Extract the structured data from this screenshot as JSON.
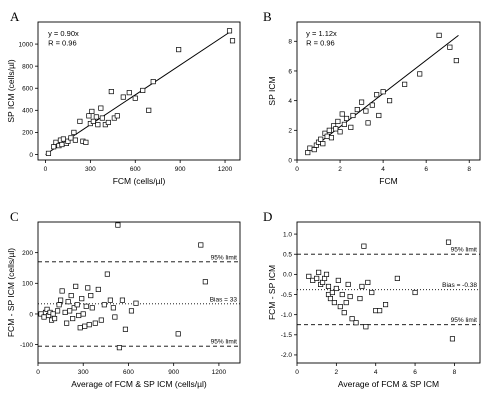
{
  "chart_data": [
    {
      "panel_label": "A",
      "type": "scatter",
      "xlabel": "FCM (cells/µl)",
      "ylabel": "SP ICM (cells/µl)",
      "xlim": [
        -50,
        1300
      ],
      "ylim": [
        -50,
        1200
      ],
      "xticks": [
        0,
        300,
        600,
        900,
        1200
      ],
      "yticks": [
        0,
        200,
        400,
        600,
        800,
        1000
      ],
      "annotations": [
        "y = 0.90x",
        "R = 0.96"
      ],
      "fit_line": {
        "slope": 0.9,
        "x_range": [
          0,
          1230
        ]
      },
      "points": [
        [
          20,
          10
        ],
        [
          55,
          70
        ],
        [
          70,
          110
        ],
        [
          90,
          80
        ],
        [
          100,
          130
        ],
        [
          110,
          90
        ],
        [
          120,
          140
        ],
        [
          140,
          100
        ],
        [
          150,
          120
        ],
        [
          170,
          150
        ],
        [
          190,
          200
        ],
        [
          200,
          130
        ],
        [
          230,
          300
        ],
        [
          250,
          120
        ],
        [
          270,
          110
        ],
        [
          290,
          350
        ],
        [
          300,
          280
        ],
        [
          310,
          390
        ],
        [
          320,
          300
        ],
        [
          340,
          340
        ],
        [
          350,
          270
        ],
        [
          370,
          420
        ],
        [
          380,
          330
        ],
        [
          400,
          270
        ],
        [
          420,
          290
        ],
        [
          440,
          570
        ],
        [
          460,
          330
        ],
        [
          480,
          350
        ],
        [
          520,
          520
        ],
        [
          560,
          560
        ],
        [
          600,
          510
        ],
        [
          650,
          580
        ],
        [
          690,
          400
        ],
        [
          720,
          660
        ],
        [
          890,
          950
        ],
        [
          1230,
          1120
        ],
        [
          1250,
          1030
        ]
      ]
    },
    {
      "panel_label": "B",
      "type": "scatter",
      "xlabel": "FCM",
      "ylabel": "SP ICM",
      "xlim": [
        0,
        8.5
      ],
      "ylim": [
        0,
        9.3
      ],
      "xticks": [
        0,
        2,
        4,
        6,
        8
      ],
      "yticks": [
        0,
        2,
        4,
        6,
        8
      ],
      "annotations": [
        "y = 1.12x",
        "R = 0.96"
      ],
      "fit_line": {
        "slope": 1.12,
        "x_range": [
          0.5,
          7.5
        ]
      },
      "points": [
        [
          0.5,
          0.5
        ],
        [
          0.6,
          0.8
        ],
        [
          0.8,
          0.7
        ],
        [
          0.9,
          1.0
        ],
        [
          1.0,
          1.2
        ],
        [
          1.1,
          1.4
        ],
        [
          1.2,
          1.1
        ],
        [
          1.3,
          1.8
        ],
        [
          1.4,
          1.6
        ],
        [
          1.5,
          2.0
        ],
        [
          1.6,
          1.5
        ],
        [
          1.7,
          2.3
        ],
        [
          1.8,
          2.1
        ],
        [
          1.9,
          2.6
        ],
        [
          2.0,
          1.9
        ],
        [
          2.1,
          3.1
        ],
        [
          2.2,
          2.4
        ],
        [
          2.3,
          2.8
        ],
        [
          2.5,
          2.2
        ],
        [
          2.6,
          3.0
        ],
        [
          2.8,
          3.4
        ],
        [
          3.0,
          3.9
        ],
        [
          3.2,
          3.3
        ],
        [
          3.3,
          2.5
        ],
        [
          3.5,
          3.7
        ],
        [
          3.7,
          4.4
        ],
        [
          3.8,
          3.0
        ],
        [
          4.0,
          4.6
        ],
        [
          4.3,
          4.0
        ],
        [
          5.0,
          5.1
        ],
        [
          5.7,
          5.8
        ],
        [
          6.6,
          8.4
        ],
        [
          7.1,
          7.6
        ],
        [
          7.4,
          6.7
        ]
      ]
    },
    {
      "panel_label": "C",
      "type": "scatter",
      "xlabel": "Average of FCM & SP ICM (cells/µl)",
      "ylabel": "FCM - SP ICM (cells/µl)",
      "xlim": [
        0,
        1340
      ],
      "ylim": [
        -160,
        300
      ],
      "xticks": [
        0,
        300,
        600,
        900,
        1200
      ],
      "yticks": [
        -100,
        0,
        100,
        200
      ],
      "reference_lines": [
        {
          "y": 170,
          "style": "dashed",
          "label": "95% limit"
        },
        {
          "y": 33,
          "style": "dotted",
          "label": "Bias = 33"
        },
        {
          "y": -105,
          "style": "dashed",
          "label": "95% limit"
        }
      ],
      "points": [
        [
          20,
          0
        ],
        [
          40,
          -10
        ],
        [
          50,
          5
        ],
        [
          60,
          15
        ],
        [
          70,
          -5
        ],
        [
          80,
          5
        ],
        [
          90,
          -20
        ],
        [
          100,
          0
        ],
        [
          110,
          -15
        ],
        [
          130,
          10
        ],
        [
          140,
          30
        ],
        [
          150,
          45
        ],
        [
          160,
          75
        ],
        [
          180,
          5
        ],
        [
          190,
          -30
        ],
        [
          200,
          40
        ],
        [
          210,
          10
        ],
        [
          220,
          60
        ],
        [
          230,
          -15
        ],
        [
          240,
          20
        ],
        [
          250,
          90
        ],
        [
          260,
          30
        ],
        [
          270,
          -5
        ],
        [
          280,
          -45
        ],
        [
          290,
          50
        ],
        [
          300,
          0
        ],
        [
          310,
          -40
        ],
        [
          320,
          25
        ],
        [
          330,
          85
        ],
        [
          340,
          -35
        ],
        [
          350,
          60
        ],
        [
          360,
          20
        ],
        [
          380,
          -30
        ],
        [
          400,
          80
        ],
        [
          420,
          -20
        ],
        [
          440,
          30
        ],
        [
          460,
          130
        ],
        [
          480,
          45
        ],
        [
          500,
          20
        ],
        [
          510,
          -10
        ],
        [
          530,
          290
        ],
        [
          540,
          -110
        ],
        [
          560,
          45
        ],
        [
          580,
          -50
        ],
        [
          620,
          10
        ],
        [
          650,
          35
        ],
        [
          930,
          -65
        ],
        [
          1080,
          225
        ],
        [
          1110,
          105
        ]
      ]
    },
    {
      "panel_label": "D",
      "type": "scatter",
      "xlabel": "Average of FCM & SP ICM",
      "ylabel": "FCM - SP ICM",
      "xlim": [
        0,
        9.3
      ],
      "ylim": [
        -2.2,
        1.3
      ],
      "xticks": [
        0,
        2,
        4,
        6,
        8
      ],
      "yticks": [
        -2.0,
        -1.5,
        -1.0,
        -0.5,
        0.0,
        0.5,
        1.0
      ],
      "reference_lines": [
        {
          "y": 0.5,
          "style": "dashed",
          "label": "95% limit"
        },
        {
          "y": -0.38,
          "style": "dotted",
          "label": "Bias = -0.38"
        },
        {
          "y": -1.25,
          "style": "dashed",
          "label": "95% limit"
        }
      ],
      "points": [
        [
          0.6,
          -0.05
        ],
        [
          0.8,
          -0.15
        ],
        [
          1.0,
          -0.1
        ],
        [
          1.1,
          0.05
        ],
        [
          1.2,
          -0.25
        ],
        [
          1.3,
          -0.2
        ],
        [
          1.4,
          -0.1
        ],
        [
          1.5,
          0.0
        ],
        [
          1.6,
          -0.3
        ],
        [
          1.6,
          -0.5
        ],
        [
          1.7,
          -0.6
        ],
        [
          1.8,
          -0.45
        ],
        [
          1.9,
          -0.7
        ],
        [
          2.0,
          -0.35
        ],
        [
          2.1,
          -0.15
        ],
        [
          2.2,
          -0.8
        ],
        [
          2.3,
          -0.5
        ],
        [
          2.4,
          -0.95
        ],
        [
          2.5,
          -0.7
        ],
        [
          2.6,
          -0.25
        ],
        [
          2.7,
          -0.55
        ],
        [
          2.8,
          -1.1
        ],
        [
          3.0,
          -1.2
        ],
        [
          3.2,
          -0.6
        ],
        [
          3.3,
          -0.3
        ],
        [
          3.4,
          0.7
        ],
        [
          3.5,
          -1.3
        ],
        [
          3.6,
          -0.2
        ],
        [
          3.8,
          -0.45
        ],
        [
          4.0,
          -0.9
        ],
        [
          4.2,
          -0.9
        ],
        [
          4.5,
          -0.75
        ],
        [
          5.1,
          -0.1
        ],
        [
          6.0,
          -0.45
        ],
        [
          7.7,
          0.8
        ],
        [
          7.9,
          -1.6
        ]
      ]
    }
  ]
}
